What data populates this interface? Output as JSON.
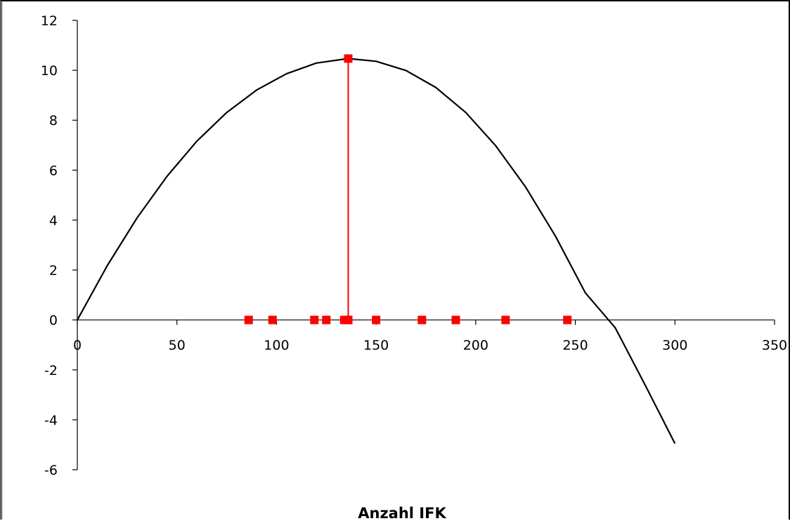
{
  "chart_data": {
    "type": "line",
    "title": "",
    "xlabel": "Anzahl IFK",
    "ylabel": "",
    "xlim": [
      0,
      350
    ],
    "ylim": [
      -6,
      12
    ],
    "x_ticks": [
      0,
      50,
      100,
      150,
      200,
      250,
      300,
      350
    ],
    "y_ticks": [
      -6,
      -4,
      -2,
      0,
      2,
      4,
      6,
      8,
      10,
      12
    ],
    "x_tick_labels": [
      "0",
      "50",
      "100",
      "150",
      "200",
      "250",
      "300",
      "350"
    ],
    "y_tick_labels": [
      "-6",
      "-4",
      "-2",
      "0",
      "2",
      "4",
      "6",
      "8",
      "10",
      "12"
    ],
    "grid": false,
    "legend": "none",
    "series": [
      {
        "kind": "curve",
        "color": "#000000",
        "x": [
          0,
          15,
          30,
          45,
          60,
          75,
          90,
          105,
          120,
          136,
          150,
          165,
          180,
          195,
          210,
          225,
          240,
          255,
          270,
          285,
          300
        ],
        "y": [
          0,
          2.17,
          4.09,
          5.75,
          7.16,
          8.31,
          9.21,
          9.86,
          10.29,
          10.47,
          10.36,
          9.99,
          9.31,
          8.31,
          6.98,
          5.33,
          3.36,
          1.09,
          -0.31,
          -2.6,
          -4.95
        ]
      },
      {
        "kind": "markers",
        "color": "#ff0000",
        "marker": "square",
        "x": [
          86,
          98,
          119,
          125,
          134,
          136,
          150,
          173,
          190,
          215,
          246
        ],
        "y": [
          0,
          0,
          0,
          0,
          0,
          0,
          0,
          0,
          0,
          0,
          0
        ]
      },
      {
        "kind": "line",
        "color": "#ff0000",
        "marker": "square",
        "x": [
          136,
          136
        ],
        "y": [
          0,
          10.47
        ]
      }
    ]
  }
}
